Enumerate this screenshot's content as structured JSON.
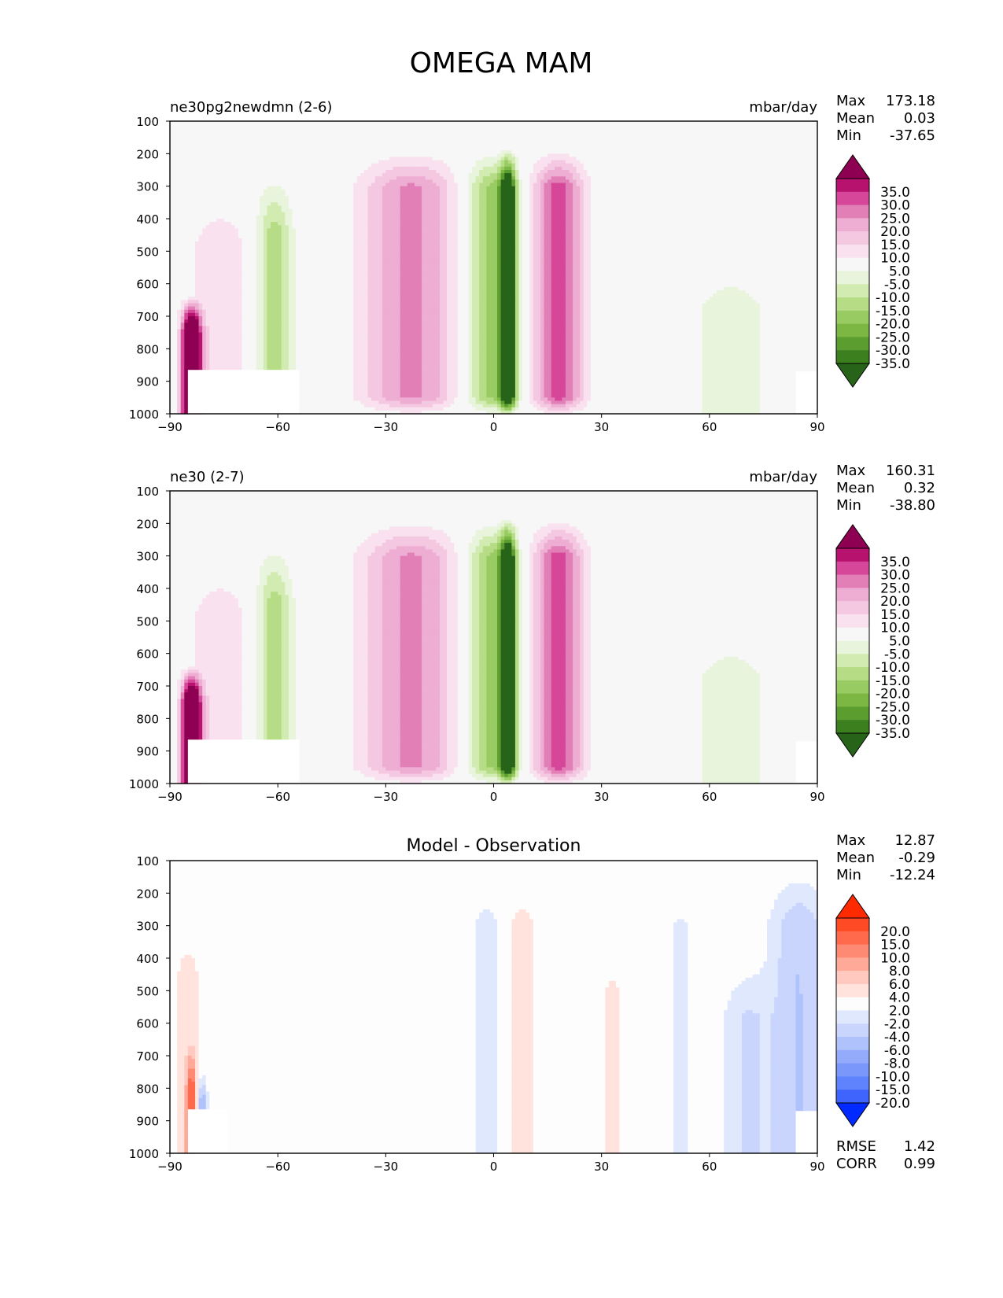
{
  "figure": {
    "title": "OMEGA MAM"
  },
  "chart_data": [
    {
      "type": "heatmap",
      "title": "ne30pg2newdmn (2-6)",
      "units": "mbar/day",
      "xlim": [
        -90,
        90
      ],
      "ylim": [
        1000,
        100
      ],
      "x_ticks": [
        -90,
        -60,
        -30,
        0,
        30,
        60,
        90
      ],
      "x_tick_labels": [
        "−90",
        "−60",
        "−30",
        "0",
        "30",
        "60",
        "90"
      ],
      "y_ticks": [
        100,
        200,
        300,
        400,
        500,
        600,
        700,
        800,
        900,
        1000
      ],
      "stats": {
        "max_label": "Max",
        "max": "173.18",
        "mean_label": "Mean",
        "mean": "0.03",
        "min_label": "Min",
        "min": "-37.65"
      },
      "colorbar": {
        "labels": [
          "35.0",
          "30.0",
          "25.0",
          "20.0",
          "15.0",
          "10.0",
          "5.0",
          "-5.0",
          "-10.0",
          "-15.0",
          "-20.0",
          "-25.0",
          "-30.0",
          "-35.0"
        ],
        "top_color": "#8e0152",
        "bottom_color": "#276419",
        "colors": [
          "#8e0152",
          "#b8126f",
          "#d6479a",
          "#e27fb7",
          "#eeadd2",
          "#f5c8e2",
          "#f9e1ef",
          "#f7f7f7",
          "#e9f4dc",
          "#d1ebb1",
          "#b6dd86",
          "#98cc62",
          "#7cb744",
          "#5b9d2f",
          "#3c7f1f",
          "#276419"
        ]
      },
      "field": {
        "type": "omega",
        "land_mask": [
          [
            -85,
            865
          ],
          [
            -54,
            865
          ]
        ]
      }
    },
    {
      "type": "heatmap",
      "title": "ne30 (2-7)",
      "units": "mbar/day",
      "xlim": [
        -90,
        90
      ],
      "ylim": [
        1000,
        100
      ],
      "x_ticks": [
        -90,
        -60,
        -30,
        0,
        30,
        60,
        90
      ],
      "x_tick_labels": [
        "−90",
        "−60",
        "−30",
        "0",
        "30",
        "60",
        "90"
      ],
      "y_ticks": [
        100,
        200,
        300,
        400,
        500,
        600,
        700,
        800,
        900,
        1000
      ],
      "stats": {
        "max_label": "Max",
        "max": "160.31",
        "mean_label": "Mean",
        "mean": "0.32",
        "min_label": "Min",
        "min": "-38.80"
      },
      "colorbar": {
        "labels": [
          "35.0",
          "30.0",
          "25.0",
          "20.0",
          "15.0",
          "10.0",
          "5.0",
          "-5.0",
          "-10.0",
          "-15.0",
          "-20.0",
          "-25.0",
          "-30.0",
          "-35.0"
        ],
        "top_color": "#8e0152",
        "bottom_color": "#276419",
        "colors": [
          "#8e0152",
          "#b8126f",
          "#d6479a",
          "#e27fb7",
          "#eeadd2",
          "#f5c8e2",
          "#f9e1ef",
          "#f7f7f7",
          "#e9f4dc",
          "#d1ebb1",
          "#b6dd86",
          "#98cc62",
          "#7cb744",
          "#5b9d2f",
          "#3c7f1f",
          "#276419"
        ]
      },
      "field": {
        "type": "omega",
        "land_mask": [
          [
            -85,
            865
          ],
          [
            -54,
            865
          ]
        ]
      }
    },
    {
      "type": "heatmap",
      "title": "Model - Observation",
      "units": "",
      "xlim": [
        -90,
        90
      ],
      "ylim": [
        1000,
        100
      ],
      "x_ticks": [
        -90,
        -60,
        -30,
        0,
        30,
        60,
        90
      ],
      "x_tick_labels": [
        "−90",
        "−60",
        "−30",
        "0",
        "30",
        "60",
        "90"
      ],
      "y_ticks": [
        100,
        200,
        300,
        400,
        500,
        600,
        700,
        800,
        900,
        1000
      ],
      "stats": {
        "max_label": "Max",
        "max": "12.87",
        "mean_label": "Mean",
        "mean": "-0.29",
        "min_label": "Min",
        "min": "-12.24"
      },
      "extra_stats": {
        "rmse_label": "RMSE",
        "rmse": "1.42",
        "corr_label": "CORR",
        "corr": "0.99"
      },
      "colorbar": {
        "labels": [
          "20.0",
          "15.0",
          "10.0",
          "8.0",
          "6.0",
          "4.0",
          "2.0",
          "-2.0",
          "-4.0",
          "-6.0",
          "-8.0",
          "-10.0",
          "-15.0",
          "-20.0"
        ],
        "top_color": "#ff2a00",
        "bottom_color": "#002aff",
        "colors": [
          "#ff2a00",
          "#ff4a26",
          "#ff6a4d",
          "#ff8a73",
          "#ffa999",
          "#ffc9bf",
          "#ffe3dc",
          "#fdfdfd",
          "#e0e8fd",
          "#c9d5fc",
          "#b0c2fc",
          "#94abfb",
          "#7a97fb",
          "#5f83fc",
          "#3e64fd",
          "#1f48ff"
        ]
      },
      "field": {
        "type": "diff",
        "land_mask": [
          [
            -85,
            865
          ],
          [
            -74,
            865
          ]
        ]
      }
    }
  ]
}
